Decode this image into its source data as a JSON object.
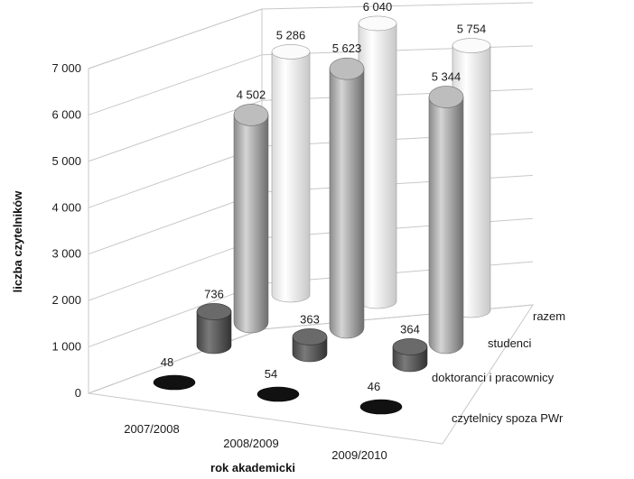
{
  "chart_data": {
    "type": "bar",
    "subtype": "3d-cylinder",
    "xlabel": "rok akademicki",
    "ylabel": "liczba czytelników",
    "ylim": [
      0,
      7000
    ],
    "yticks": [
      "0",
      "1 000",
      "2 000",
      "3 000",
      "4 000",
      "5 000",
      "6 000",
      "7 000"
    ],
    "grid": true,
    "categories": [
      "2007/2008",
      "2008/2009",
      "2009/2010"
    ],
    "series": [
      {
        "name": "czytelnicy spoza PWr",
        "values": [
          48,
          54,
          46
        ],
        "labels": [
          "48",
          "54",
          "46"
        ],
        "color": "#1a1a1a"
      },
      {
        "name": "doktoranci i pracownicy",
        "values": [
          736,
          363,
          364
        ],
        "labels": [
          "736",
          "363",
          "364"
        ],
        "color": "#5a5a5a"
      },
      {
        "name": "studenci",
        "values": [
          4502,
          5623,
          5344
        ],
        "labels": [
          "4 502",
          "5 623",
          "5 344"
        ],
        "color": "#a6a6a6"
      },
      {
        "name": "razem",
        "values": [
          5286,
          6040,
          5754
        ],
        "labels": [
          "5 286",
          "6 040",
          "5 754"
        ],
        "color": "#f2f2f2"
      }
    ]
  }
}
